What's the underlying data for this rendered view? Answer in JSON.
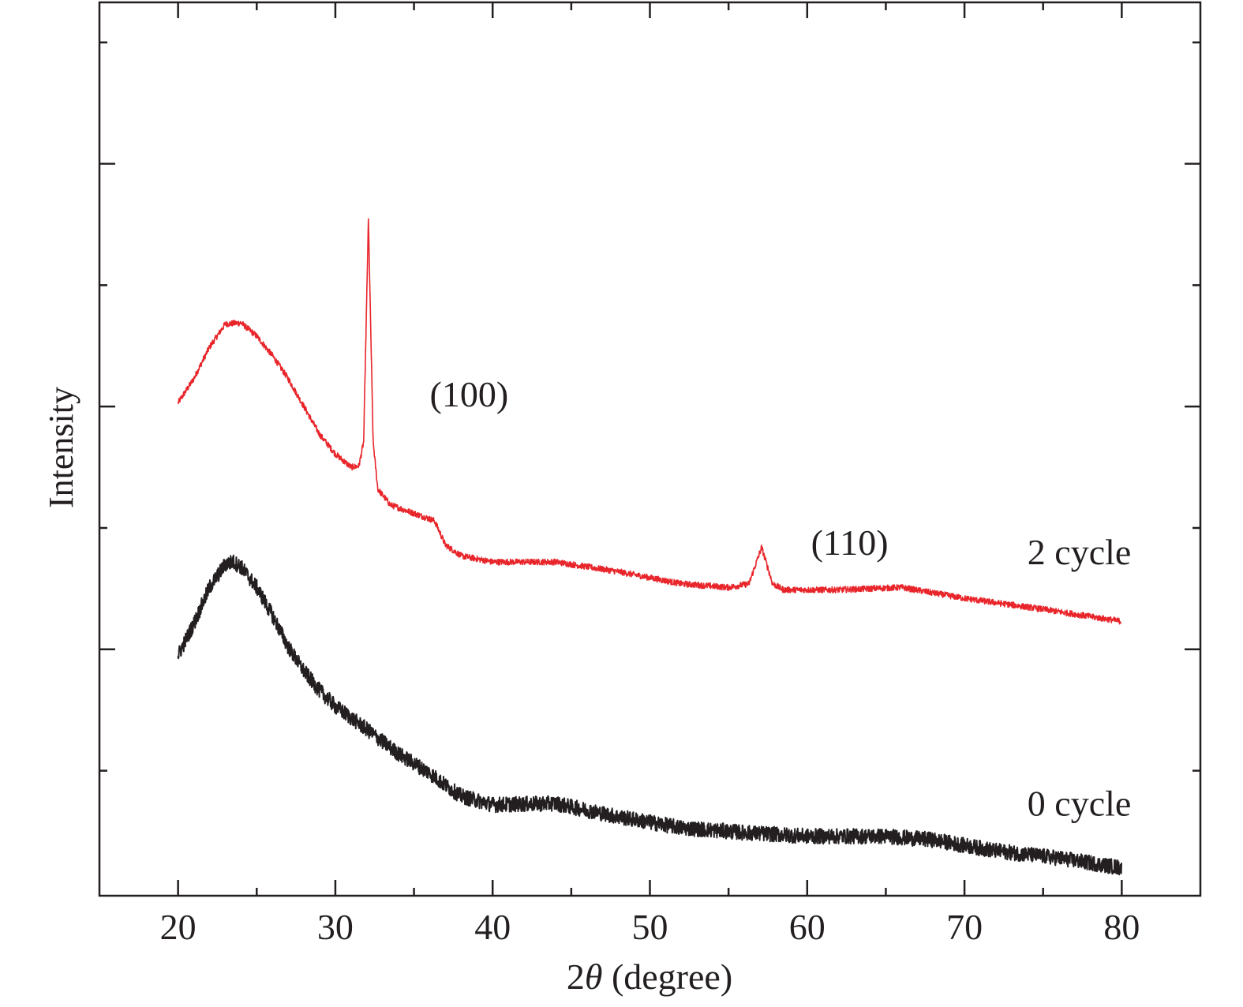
{
  "chart_data": {
    "type": "line",
    "title": "",
    "xlabel_prefix": "2",
    "xlabel_symbol": "θ",
    "xlabel_suffix": " (degree)",
    "ylabel": "Intensity",
    "xlim": [
      15,
      85
    ],
    "ylim": [
      -0.03,
      7.33
    ],
    "xticks": [
      20,
      30,
      40,
      50,
      60,
      70,
      80
    ],
    "xminor": [
      25,
      35,
      45,
      55,
      65,
      75
    ],
    "yticks_major": [
      2,
      4,
      6
    ],
    "yticks_minor": [
      1,
      3,
      5,
      7
    ],
    "y_tick_labels_shown": false,
    "grid": false,
    "series": [
      {
        "name": "2 cycle",
        "color": "#e8252a",
        "noise": 0.05,
        "x": [
          20,
          21,
          22,
          23,
          24,
          25,
          26,
          27,
          28,
          29,
          30,
          31,
          31.5,
          31.8,
          32.1,
          32.4,
          32.7,
          33.5,
          35,
          36.3,
          37,
          38,
          40,
          44,
          48,
          52,
          55,
          56.3,
          57.1,
          57.8,
          58.5,
          62,
          66,
          70,
          75,
          80
        ],
        "y": [
          4.03,
          4.23,
          4.49,
          4.68,
          4.69,
          4.58,
          4.42,
          4.23,
          4.0,
          3.77,
          3.61,
          3.5,
          3.51,
          3.71,
          5.54,
          3.71,
          3.32,
          3.19,
          3.12,
          3.06,
          2.86,
          2.77,
          2.72,
          2.72,
          2.64,
          2.54,
          2.51,
          2.54,
          2.84,
          2.54,
          2.49,
          2.49,
          2.51,
          2.42,
          2.33,
          2.23
        ]
      },
      {
        "name": "0 cycle",
        "color": "#231f20",
        "noise": 0.09,
        "x": [
          20,
          21,
          22,
          23,
          23.5,
          24,
          25,
          26,
          27,
          28,
          29,
          30,
          32,
          34,
          36,
          37,
          38,
          40,
          44,
          48,
          52,
          56,
          60,
          65,
          68,
          72,
          76,
          80
        ],
        "y": [
          1.95,
          2.21,
          2.51,
          2.7,
          2.72,
          2.68,
          2.51,
          2.28,
          2.02,
          1.82,
          1.66,
          1.53,
          1.34,
          1.14,
          0.98,
          0.88,
          0.79,
          0.72,
          0.73,
          0.62,
          0.53,
          0.49,
          0.46,
          0.46,
          0.43,
          0.34,
          0.28,
          0.2
        ]
      }
    ],
    "annotations": [
      {
        "text": "(100)",
        "x": 38.5,
        "y": 4.0
      },
      {
        "text": "(110)",
        "x": 62.7,
        "y": 2.78
      },
      {
        "text": "2 cycle",
        "x": 80.6,
        "y": 2.7
      },
      {
        "text": "0 cycle",
        "x": 80.6,
        "y": 0.63
      }
    ]
  }
}
